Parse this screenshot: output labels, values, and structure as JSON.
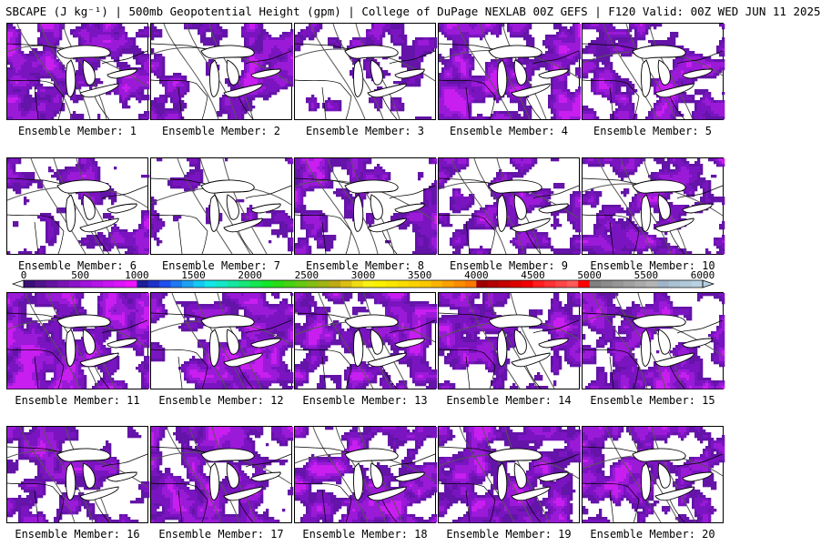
{
  "header": {
    "title": "SBCAPE (J kg⁻¹) | 500mb Geopotential Height (gpm) | College of DuPage NEXLAB 00Z GEFS | F120 Valid: 00Z WED JUN 11 2025"
  },
  "legend": {
    "ticks": [
      "0",
      "500",
      "1000",
      "1500",
      "2000",
      "2500",
      "3000",
      "3500",
      "4000",
      "4500",
      "5000",
      "5500",
      "6000"
    ],
    "colors": [
      "#3c0f78",
      "#50148c",
      "#6414a0",
      "#7814b4",
      "#8c14c8",
      "#a014dc",
      "#b414e6",
      "#c814f0",
      "#dc14fa",
      "#f014ff",
      "#1e1e96",
      "#1e32c8",
      "#1e50f0",
      "#1e78f0",
      "#1ea0f0",
      "#14c8f0",
      "#14e6e6",
      "#14e6c8",
      "#14e6a0",
      "#14e678",
      "#14e650",
      "#14e628",
      "#28dc14",
      "#46d214",
      "#64c814",
      "#82be14",
      "#a0b414",
      "#beaa14",
      "#dcbe14",
      "#f0dc14",
      "#faf014",
      "#faf000",
      "#fae600",
      "#fadc00",
      "#fad200",
      "#fac800",
      "#fab400",
      "#faa000",
      "#fa8c00",
      "#fa7800",
      "#a00000",
      "#b40000",
      "#c80000",
      "#dc0000",
      "#f00000",
      "#ff1e1e",
      "#ff3232",
      "#ff4646",
      "#ff5a5a",
      "#ff0000",
      "#808080",
      "#8c8c8c",
      "#969696",
      "#a0a0a0",
      "#aaaaaa",
      "#b4b4b4",
      "#a0b4c8",
      "#a8c0d0",
      "#b0c8d8",
      "#b8d0e0"
    ]
  },
  "members": [
    {
      "label": "Ensemble Member: 1"
    },
    {
      "label": "Ensemble Member: 2"
    },
    {
      "label": "Ensemble Member: 3"
    },
    {
      "label": "Ensemble Member: 4"
    },
    {
      "label": "Ensemble Member: 5"
    },
    {
      "label": "Ensemble Member: 6"
    },
    {
      "label": "Ensemble Member: 7"
    },
    {
      "label": "Ensemble Member: 8"
    },
    {
      "label": "Ensemble Member: 9"
    },
    {
      "label": "Ensemble Member: 10"
    },
    {
      "label": "Ensemble Member: 11"
    },
    {
      "label": "Ensemble Member: 12"
    },
    {
      "label": "Ensemble Member: 13"
    },
    {
      "label": "Ensemble Member: 14"
    },
    {
      "label": "Ensemble Member: 15"
    },
    {
      "label": "Ensemble Member: 16"
    },
    {
      "label": "Ensemble Member: 17"
    },
    {
      "label": "Ensemble Member: 18"
    },
    {
      "label": "Ensemble Member: 19"
    },
    {
      "label": "Ensemble Member: 20"
    }
  ]
}
